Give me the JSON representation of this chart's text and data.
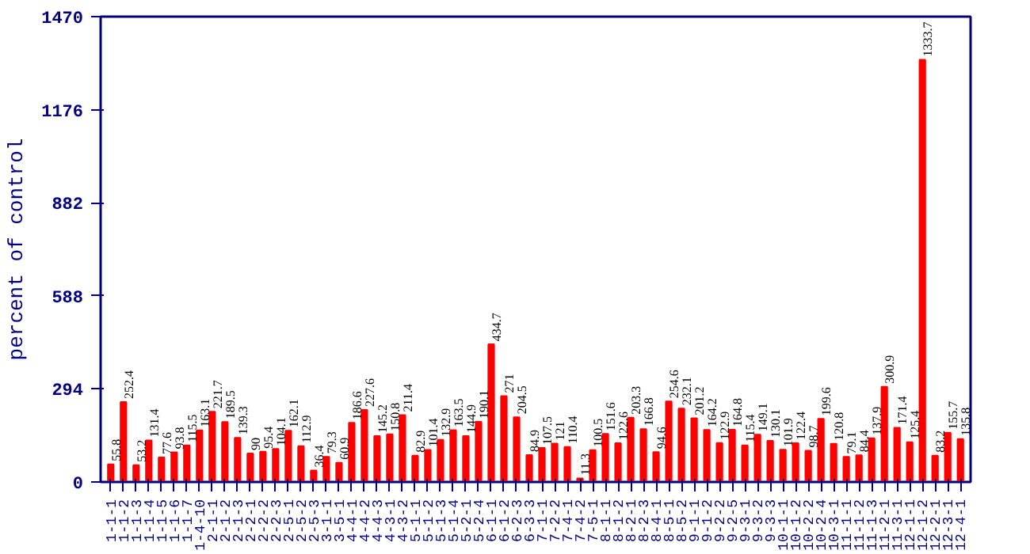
{
  "chart_data": {
    "type": "bar",
    "ylabel": "percent of control",
    "categories": [
      "1-1-1",
      "1-1-2",
      "1-1-3",
      "1-1-4",
      "1-1-5",
      "1-1-6",
      "1-1-7",
      "1-4-10",
      "2-1-1",
      "2-1-2",
      "2-1-3",
      "2-2-1",
      "2-2-2",
      "2-2-3",
      "2-5-1",
      "2-5-2",
      "2-5-3",
      "3-1-1",
      "3-5-1",
      "4-4-1",
      "4-4-2",
      "4-4-3",
      "4-3-1",
      "4-3-2",
      "5-1-1",
      "5-1-2",
      "5-1-3",
      "5-1-4",
      "5-2-1",
      "5-2-4",
      "6-1-1",
      "6-1-2",
      "6-2-3",
      "6-3-3",
      "7-1-1",
      "7-2-2",
      "7-4-1",
      "7-4-2",
      "7-5-1",
      "8-1-1",
      "8-1-2",
      "8-2-1",
      "8-2-3",
      "8-4-1",
      "8-5-1",
      "8-5-2",
      "9-1-1",
      "9-1-2",
      "9-2-2",
      "9-2-5",
      "9-3-1",
      "9-3-2",
      "9-3-3",
      "10-1-1",
      "10-1-2",
      "10-2-2",
      "10-2-4",
      "10-3-1",
      "11-1-1",
      "11-1-2",
      "11-1-3",
      "11-2-1",
      "11-3-1",
      "12-1-1",
      "12-1-2",
      "12-2-1",
      "12-3-1",
      "12-4-1"
    ],
    "values": [
      55.8,
      252.4,
      53.2,
      131.4,
      77.6,
      93.8,
      115.5,
      163.1,
      221.7,
      189.5,
      139.3,
      90,
      95.4,
      104.1,
      162.1,
      112.9,
      36.4,
      79.3,
      60.9,
      186.6,
      227.6,
      145.2,
      150.8,
      211.4,
      82.9,
      101.4,
      132.9,
      163.5,
      144.9,
      190.1,
      434.7,
      271,
      204.5,
      84.9,
      107.5,
      121,
      110.4,
      11.3,
      100.5,
      151.6,
      122.6,
      203.3,
      166.8,
      94.6,
      254.6,
      232.1,
      201.2,
      164.2,
      122.9,
      164.8,
      115.4,
      149.1,
      130.1,
      101.9,
      122.4,
      98.7,
      199.6,
      120.8,
      79.1,
      84.4,
      137.9,
      300.9,
      171.4,
      125.4,
      1333.7,
      83.2,
      155.7,
      135.8
    ],
    "color": "#ff0000",
    "ylim": [
      0,
      1470
    ],
    "yticks": [
      0,
      294,
      588,
      882,
      1176,
      1470
    ],
    "grid": false,
    "data_labels": true
  }
}
